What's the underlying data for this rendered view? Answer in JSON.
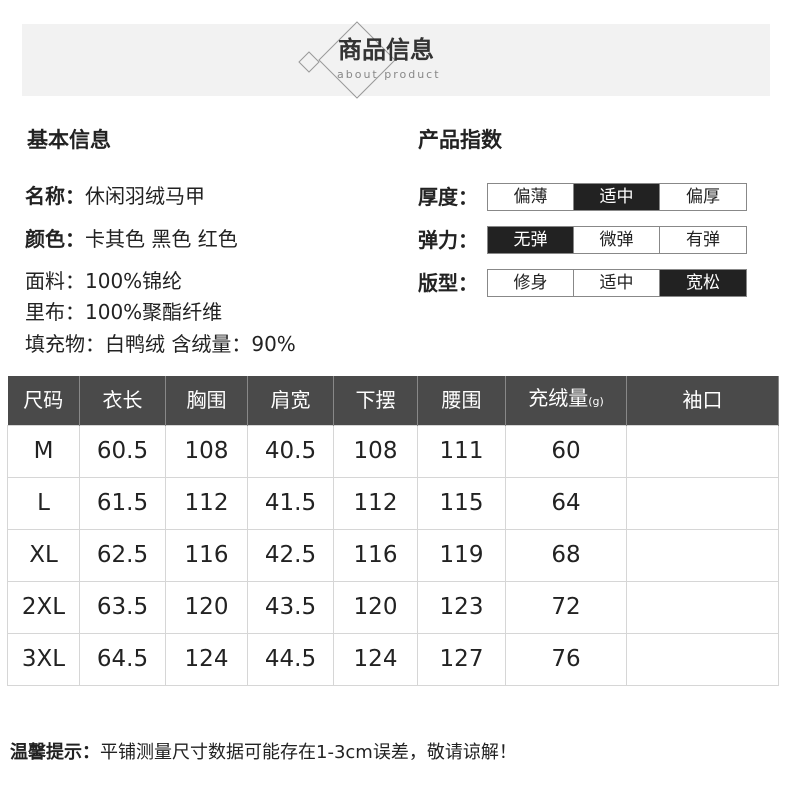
{
  "header": {
    "title": "商品信息",
    "subtitle": "about product"
  },
  "basic": {
    "heading": "基本信息",
    "lines": [
      {
        "label": "名称：",
        "value": "休闲羽绒马甲"
      },
      {
        "label": "颜色：",
        "value": "卡其色  黑色  红色"
      },
      {
        "label": "面料：",
        "value": "100%锦纶"
      },
      {
        "label": "里布：",
        "value": "100%聚酯纤维"
      },
      {
        "label": "填充物：",
        "value": "白鸭绒 含绒量：90%"
      }
    ]
  },
  "index": {
    "heading": "产品指数",
    "rows": [
      {
        "label": "厚度：",
        "options": [
          "偏薄",
          "适中",
          "偏厚"
        ],
        "selected": 1
      },
      {
        "label": "弹力：",
        "options": [
          "无弹",
          "微弹",
          "有弹"
        ],
        "selected": 0
      },
      {
        "label": "版型：",
        "options": [
          "修身",
          "适中",
          "宽松"
        ],
        "selected": 2
      }
    ]
  },
  "table": {
    "headers": [
      "尺码",
      "衣长",
      "胸围",
      "肩宽",
      "下摆",
      "腰围",
      "充绒量",
      "袖口"
    ],
    "unit": "(g)",
    "rows": [
      [
        "M",
        "60.5",
        "108",
        "40.5",
        "108",
        "111",
        "60",
        ""
      ],
      [
        "L",
        "61.5",
        "112",
        "41.5",
        "112",
        "115",
        "64",
        ""
      ],
      [
        "XL",
        "62.5",
        "116",
        "42.5",
        "116",
        "119",
        "68",
        ""
      ],
      [
        "2XL",
        "63.5",
        "120",
        "43.5",
        "120",
        "123",
        "72",
        ""
      ],
      [
        "3XL",
        "64.5",
        "124",
        "44.5",
        "124",
        "127",
        "76",
        ""
      ]
    ]
  },
  "note": {
    "label": "温馨提示：",
    "text": "平铺测量尺寸数据可能存在1-3cm误差，敬请谅解！"
  }
}
